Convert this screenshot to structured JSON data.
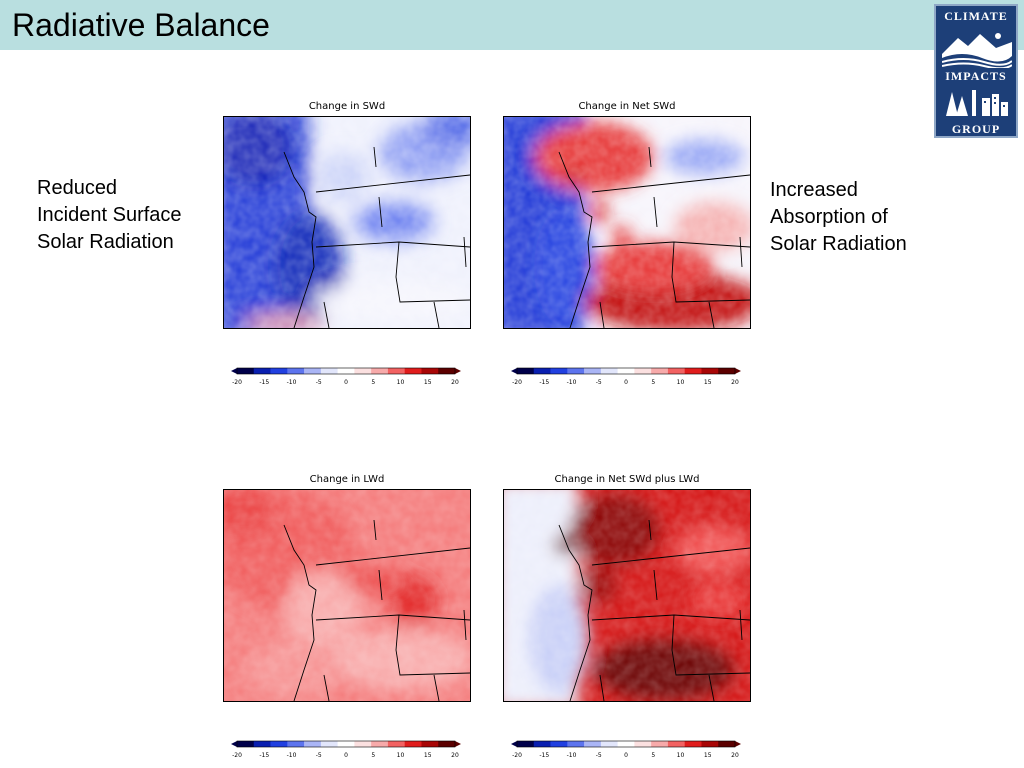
{
  "title": "Radiative Balance",
  "logo": {
    "line1": "CLIMATE",
    "line2": "IMPACTS",
    "line3": "GROUP"
  },
  "left_text": [
    "Reduced",
    "Incident Surface",
    "Solar Radiation"
  ],
  "right_text": [
    "Increased",
    "Absorption of",
    "Solar Radiation"
  ],
  "maps": [
    {
      "title": "Change in SWd"
    },
    {
      "title": "Change in Net SWd"
    },
    {
      "title": "Change in LWd"
    },
    {
      "title": "Change in Net SWd plus LWd"
    }
  ],
  "colorbar": {
    "ticks": [
      "-20",
      "-15",
      "-10",
      "-5",
      "0",
      "5",
      "10",
      "15",
      "20"
    ],
    "colors": [
      "#00004a",
      "#0a1fb0",
      "#2140e0",
      "#5d74ee",
      "#aab5f5",
      "#e2e6fb",
      "#ffffff",
      "#fbe0e0",
      "#f7aaaa",
      "#f26262",
      "#e01c1c",
      "#a80606",
      "#5c0000"
    ]
  }
}
